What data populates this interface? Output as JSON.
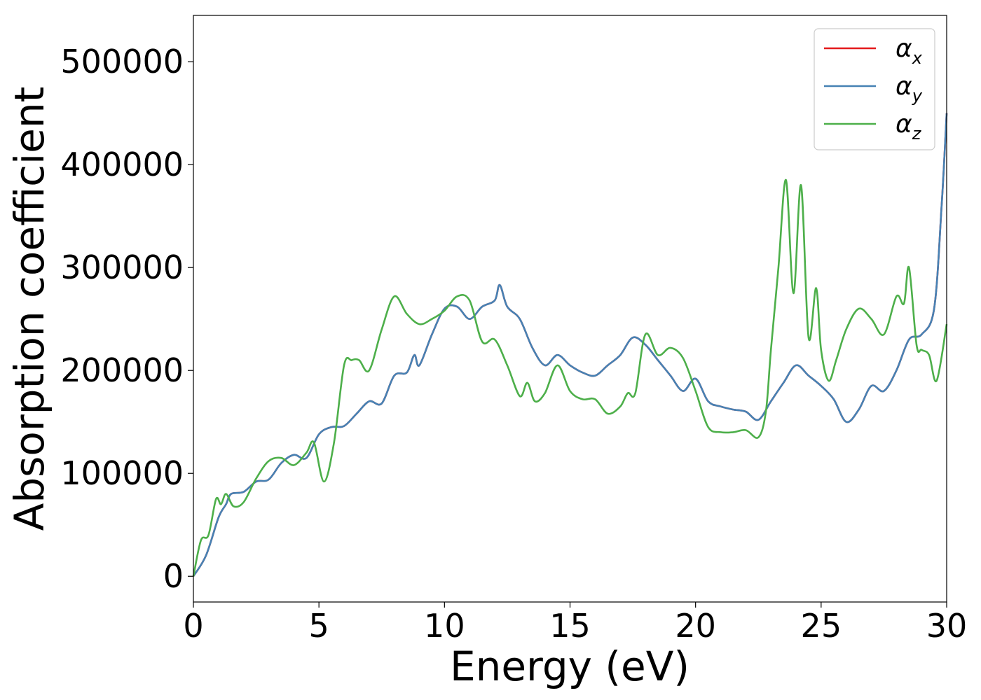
{
  "chart_data": {
    "type": "line",
    "title": "",
    "xlabel": "Energy (eV)",
    "ylabel": "Absorption coefficient",
    "xlim": [
      0,
      30
    ],
    "ylim": [
      -25000,
      545000
    ],
    "xticks": [
      0,
      5,
      10,
      15,
      20,
      25,
      30
    ],
    "yticks": [
      0,
      100000,
      200000,
      300000,
      400000,
      500000
    ],
    "xtick_labels": [
      "0",
      "5",
      "10",
      "15",
      "20",
      "25",
      "30"
    ],
    "ytick_labels": [
      "0",
      "100000",
      "200000",
      "300000",
      "400000",
      "500000"
    ],
    "grid": false,
    "legend_position": "top-right",
    "series": [
      {
        "name": "α_x",
        "legend_main": "α",
        "legend_sub": "x",
        "color": "#e41a1c",
        "x": [
          0,
          0.5,
          1.0,
          1.3,
          1.5,
          2.0,
          2.5,
          3.0,
          3.5,
          4.0,
          4.5,
          5.0,
          5.5,
          6.0,
          6.5,
          7.0,
          7.5,
          8.0,
          8.5,
          8.8,
          9.0,
          9.5,
          10.0,
          10.5,
          11.0,
          11.5,
          12.0,
          12.2,
          12.5,
          13.0,
          13.5,
          14.0,
          14.5,
          15.0,
          15.5,
          16.0,
          16.5,
          17.0,
          17.5,
          18.0,
          18.5,
          19.0,
          19.5,
          20.0,
          20.5,
          21.0,
          21.5,
          22.0,
          22.5,
          23.0,
          23.5,
          24.0,
          24.5,
          25.0,
          25.5,
          26.0,
          26.5,
          27.0,
          27.5,
          28.0,
          28.5,
          29.0,
          29.5,
          29.8,
          30.0
        ],
        "y": [
          0,
          20000,
          57000,
          70000,
          80000,
          82000,
          92000,
          94000,
          110000,
          118000,
          115000,
          138000,
          145000,
          146000,
          158000,
          170000,
          168000,
          195000,
          198000,
          215000,
          205000,
          235000,
          260000,
          262000,
          250000,
          262000,
          268000,
          283000,
          262000,
          250000,
          222000,
          205000,
          215000,
          205000,
          198000,
          195000,
          205000,
          215000,
          232000,
          225000,
          210000,
          195000,
          180000,
          192000,
          170000,
          165000,
          162000,
          160000,
          152000,
          170000,
          188000,
          205000,
          195000,
          185000,
          172000,
          150000,
          162000,
          185000,
          180000,
          200000,
          230000,
          235000,
          260000,
          360000,
          450000
        ]
      },
      {
        "name": "α_y",
        "legend_main": "α",
        "legend_sub": "y",
        "color": "#4682b4",
        "x": [
          0,
          0.5,
          1.0,
          1.3,
          1.5,
          2.0,
          2.5,
          3.0,
          3.5,
          4.0,
          4.5,
          5.0,
          5.5,
          6.0,
          6.5,
          7.0,
          7.5,
          8.0,
          8.5,
          8.8,
          9.0,
          9.5,
          10.0,
          10.5,
          11.0,
          11.5,
          12.0,
          12.2,
          12.5,
          13.0,
          13.5,
          14.0,
          14.5,
          15.0,
          15.5,
          16.0,
          16.5,
          17.0,
          17.5,
          18.0,
          18.5,
          19.0,
          19.5,
          20.0,
          20.5,
          21.0,
          21.5,
          22.0,
          22.5,
          23.0,
          23.5,
          24.0,
          24.5,
          25.0,
          25.5,
          26.0,
          26.5,
          27.0,
          27.5,
          28.0,
          28.5,
          29.0,
          29.5,
          29.8,
          30.0
        ],
        "y": [
          0,
          20000,
          57000,
          70000,
          80000,
          82000,
          92000,
          94000,
          110000,
          118000,
          115000,
          138000,
          145000,
          146000,
          158000,
          170000,
          168000,
          195000,
          198000,
          215000,
          205000,
          235000,
          260000,
          262000,
          250000,
          262000,
          268000,
          283000,
          262000,
          250000,
          222000,
          205000,
          215000,
          205000,
          198000,
          195000,
          205000,
          215000,
          232000,
          225000,
          210000,
          195000,
          180000,
          192000,
          170000,
          165000,
          162000,
          160000,
          152000,
          170000,
          188000,
          205000,
          195000,
          185000,
          172000,
          150000,
          162000,
          185000,
          180000,
          200000,
          230000,
          235000,
          260000,
          360000,
          450000
        ]
      },
      {
        "name": "α_z",
        "legend_main": "α",
        "legend_sub": "z",
        "color": "#4daf4a",
        "x": [
          0,
          0.3,
          0.6,
          0.9,
          1.1,
          1.3,
          1.6,
          2.0,
          2.5,
          3.0,
          3.5,
          4.0,
          4.5,
          4.8,
          5.2,
          5.6,
          6.0,
          6.3,
          6.6,
          7.0,
          7.5,
          8.0,
          8.5,
          9.0,
          9.5,
          10.0,
          10.5,
          11.0,
          11.5,
          12.0,
          12.5,
          13.0,
          13.3,
          13.6,
          14.0,
          14.5,
          15.0,
          15.5,
          16.0,
          16.5,
          17.0,
          17.3,
          17.6,
          18.0,
          18.5,
          19.0,
          19.5,
          20.0,
          20.5,
          21.0,
          21.5,
          22.0,
          22.5,
          22.8,
          23.0,
          23.3,
          23.6,
          23.9,
          24.2,
          24.5,
          24.8,
          25.0,
          25.3,
          25.6,
          26.0,
          26.5,
          27.0,
          27.5,
          28.0,
          28.3,
          28.5,
          28.8,
          29.0,
          29.3,
          29.6,
          30.0
        ],
        "y": [
          0,
          35000,
          40000,
          75000,
          70000,
          80000,
          68000,
          72000,
          95000,
          112000,
          115000,
          108000,
          120000,
          130000,
          92000,
          130000,
          205000,
          210000,
          210000,
          200000,
          240000,
          272000,
          255000,
          245000,
          250000,
          258000,
          272000,
          268000,
          228000,
          230000,
          205000,
          175000,
          188000,
          170000,
          178000,
          205000,
          180000,
          172000,
          172000,
          158000,
          165000,
          178000,
          178000,
          235000,
          215000,
          222000,
          212000,
          180000,
          145000,
          140000,
          140000,
          142000,
          135000,
          160000,
          220000,
          300000,
          385000,
          275000,
          380000,
          232000,
          280000,
          220000,
          190000,
          210000,
          240000,
          260000,
          250000,
          235000,
          272000,
          265000,
          300000,
          225000,
          220000,
          215000,
          190000,
          245000
        ]
      }
    ]
  }
}
